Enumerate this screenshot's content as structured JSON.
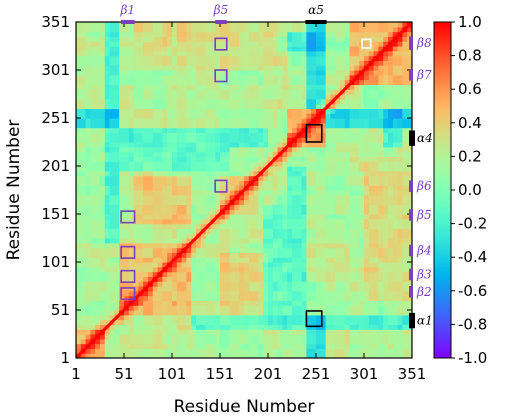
{
  "chart_data": {
    "type": "heatmap",
    "title": "",
    "xlabel": "Residue Number",
    "ylabel": "Residue Number",
    "xlim": [
      1,
      351
    ],
    "ylim": [
      1,
      351
    ],
    "x_ticks": [
      "1",
      "51",
      "101",
      "151",
      "201",
      "251",
      "301",
      "351"
    ],
    "y_ticks": [
      "1",
      "51",
      "101",
      "151",
      "201",
      "251",
      "301",
      "351"
    ],
    "colorbar": {
      "range": [
        -1.0,
        1.0
      ],
      "ticks": [
        "-1.0",
        "-0.8",
        "-0.6",
        "-0.4",
        "-0.2",
        "0.0",
        "0.2",
        "0.4",
        "0.6",
        "0.8",
        "1.0"
      ],
      "colormap": "rainbow"
    },
    "diagonal_value": 1.0,
    "top_annotations": [
      {
        "label": "β1",
        "start": 48,
        "end": 62,
        "color": "#7b3fbf"
      },
      {
        "label": "β5",
        "start": 146,
        "end": 158,
        "color": "#7b3fbf"
      },
      {
        "label": "α5",
        "start": 240,
        "end": 262,
        "color": "#000000"
      }
    ],
    "right_annotations": [
      {
        "label": "β8",
        "start": 322,
        "end": 336,
        "color": "#7b3fbf"
      },
      {
        "label": "β7",
        "start": 290,
        "end": 302,
        "color": "#7b3fbf"
      },
      {
        "label": "α4",
        "start": 222,
        "end": 238,
        "color": "#000000"
      },
      {
        "label": "β6",
        "start": 174,
        "end": 186,
        "color": "#7b3fbf"
      },
      {
        "label": "β5",
        "start": 144,
        "end": 156,
        "color": "#7b3fbf"
      },
      {
        "label": "β4",
        "start": 107,
        "end": 119,
        "color": "#7b3fbf"
      },
      {
        "label": "β3",
        "start": 82,
        "end": 94,
        "color": "#7b3fbf"
      },
      {
        "label": "β2",
        "start": 64,
        "end": 76,
        "color": "#7b3fbf"
      },
      {
        "label": "α1",
        "start": 32,
        "end": 48,
        "color": "#000000"
      }
    ],
    "highlight_boxes": [
      {
        "x": [
          48,
          62
        ],
        "y": [
          142,
          154
        ],
        "color": "#7b3fbf"
      },
      {
        "x": [
          48,
          62
        ],
        "y": [
          105,
          117
        ],
        "color": "#7b3fbf"
      },
      {
        "x": [
          48,
          62
        ],
        "y": [
          80,
          92
        ],
        "color": "#7b3fbf"
      },
      {
        "x": [
          48,
          62
        ],
        "y": [
          62,
          74
        ],
        "color": "#7b3fbf"
      },
      {
        "x": [
          146,
          158
        ],
        "y": [
          322,
          334
        ],
        "color": "#7b3fbf"
      },
      {
        "x": [
          146,
          158
        ],
        "y": [
          289,
          301
        ],
        "color": "#7b3fbf"
      },
      {
        "x": [
          146,
          158
        ],
        "y": [
          174,
          186
        ],
        "color": "#7b3fbf"
      },
      {
        "x": [
          241,
          257
        ],
        "y": [
          226,
          244
        ],
        "color": "#000000"
      },
      {
        "x": [
          241,
          257
        ],
        "y": [
          34,
          50
        ],
        "color": "#000000"
      },
      {
        "x": [
          299,
          308
        ],
        "y": [
          324,
          333
        ],
        "color": "#ffffff"
      }
    ],
    "segment_boundaries": [
      30,
      48,
      62,
      80,
      95,
      105,
      120,
      150,
      160,
      178,
      195,
      210,
      222,
      240,
      262,
      288,
      302,
      322,
      337
    ],
    "correlated_blocks": [
      {
        "x": [
          1,
          30
        ],
        "y": [
          1,
          30
        ],
        "value": 0.55
      },
      {
        "x": [
          48,
          120
        ],
        "y": [
          48,
          120
        ],
        "value": 0.45
      },
      {
        "x": [
          150,
          190
        ],
        "y": [
          150,
          190
        ],
        "value": 0.4
      },
      {
        "x": [
          222,
          262
        ],
        "y": [
          222,
          262
        ],
        "value": 0.55
      },
      {
        "x": [
          288,
          351
        ],
        "y": [
          288,
          351
        ],
        "value": 0.5
      },
      {
        "x": [
          60,
          120
        ],
        "y": [
          140,
          190
        ],
        "value": 0.4
      },
      {
        "x": [
          150,
          200
        ],
        "y": [
          30,
          110
        ],
        "value": 0.35
      },
      {
        "x": [
          240,
          262
        ],
        "y": [
          262,
          351
        ],
        "value": -0.55
      },
      {
        "x": [
          262,
          351
        ],
        "y": [
          240,
          262
        ],
        "value": -0.55
      },
      {
        "x": [
          240,
          262
        ],
        "y": [
          1,
          48
        ],
        "value": -0.5
      },
      {
        "x": [
          1,
          48
        ],
        "y": [
          240,
          262
        ],
        "value": -0.5
      },
      {
        "x": [
          30,
          48
        ],
        "y": [
          120,
          351
        ],
        "value": -0.35
      },
      {
        "x": [
          120,
          351
        ],
        "y": [
          30,
          48
        ],
        "value": -0.35
      },
      {
        "x": [
          222,
          240
        ],
        "y": [
          48,
          200
        ],
        "value": -0.3
      },
      {
        "x": [
          48,
          200
        ],
        "y": [
          222,
          240
        ],
        "value": -0.3
      },
      {
        "x": [
          195,
          222
        ],
        "y": [
          48,
          160
        ],
        "value": -0.25
      },
      {
        "x": [
          48,
          160
        ],
        "y": [
          195,
          222
        ],
        "value": -0.25
      },
      {
        "x": [
          300,
          351
        ],
        "y": [
          60,
          210
        ],
        "value": 0.3
      },
      {
        "x": [
          60,
          210
        ],
        "y": [
          300,
          351
        ],
        "value": 0.3
      },
      {
        "x": [
          320,
          340
        ],
        "y": [
          222,
          262
        ],
        "value": -0.4
      },
      {
        "x": [
          222,
          262
        ],
        "y": [
          320,
          340
        ],
        "value": -0.4
      }
    ]
  }
}
